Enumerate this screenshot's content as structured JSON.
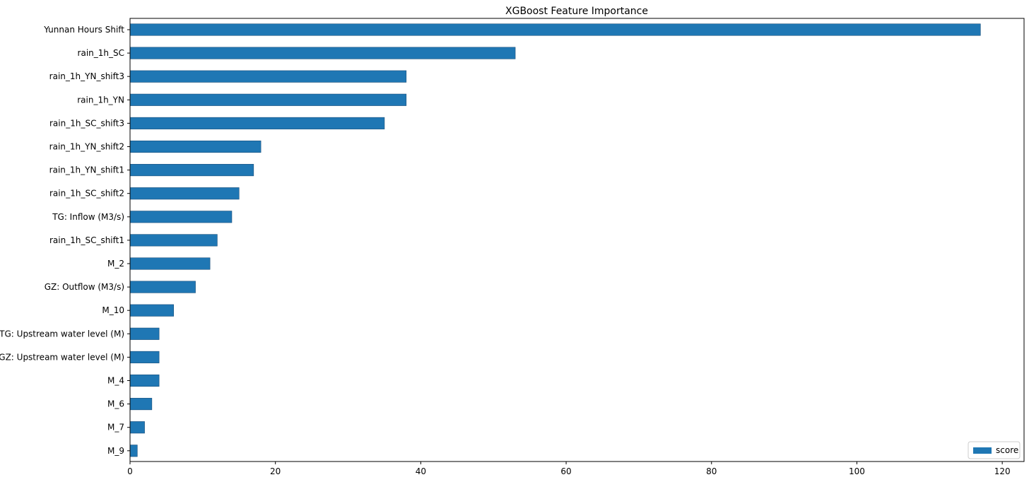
{
  "chart_data": {
    "type": "bar",
    "orientation": "horizontal",
    "title": "XGBoost Feature Importance",
    "xlabel": "",
    "ylabel": "",
    "xlim": [
      0,
      123
    ],
    "xticks": [
      0,
      20,
      40,
      60,
      80,
      100,
      120
    ],
    "grid": false,
    "legend_position": "bottom-right",
    "bar_color": "#1f77b4",
    "categories": [
      "Yunnan Hours Shift",
      "rain_1h_SC",
      "rain_1h_YN_shift3",
      "rain_1h_YN",
      "rain_1h_SC_shift3",
      "rain_1h_YN_shift2",
      "rain_1h_YN_shift1",
      "rain_1h_SC_shift2",
      "TG: Inflow (M3/s)",
      "rain_1h_SC_shift1",
      "M_2",
      "GZ: Outflow (M3/s)",
      "M_10",
      "TG: Upstream water level (M)",
      "GZ: Upstream water level (M)",
      "M_4",
      "M_6",
      "M_7",
      "M_9"
    ],
    "series": [
      {
        "name": "score",
        "values": [
          117,
          53,
          38,
          38,
          35,
          18,
          17,
          15,
          14,
          12,
          11,
          9,
          6,
          4,
          4,
          4,
          3,
          2,
          1
        ]
      }
    ]
  }
}
